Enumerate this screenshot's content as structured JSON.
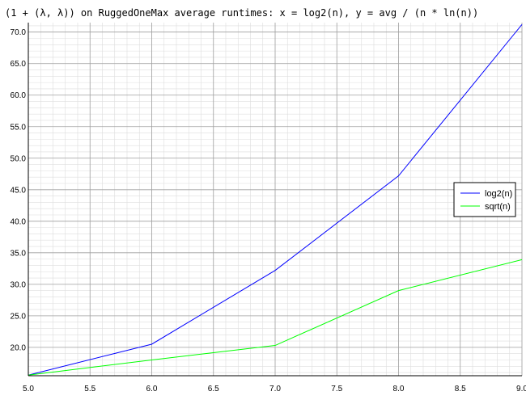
{
  "chart_data": {
    "type": "line",
    "title": "(1 + (λ, λ)) on RuggedOneMax average runtimes: x = log2(n), y = avg / (n * ln(n))",
    "xlabel": "",
    "ylabel": "",
    "xlim": [
      5.0,
      9.0
    ],
    "ylim": [
      15.5,
      71.5
    ],
    "x_ticks": [
      "5.0",
      "5.5",
      "6.0",
      "6.5",
      "7.0",
      "7.5",
      "8.0",
      "8.5",
      "9.0"
    ],
    "y_ticks": [
      "20.0",
      "25.0",
      "30.0",
      "35.0",
      "40.0",
      "45.0",
      "50.0",
      "55.0",
      "60.0",
      "65.0",
      "70.0"
    ],
    "grid": true,
    "legend_position": "right",
    "series": [
      {
        "name": "log2(n)",
        "color": "#0000ff",
        "x": [
          5,
          6,
          7,
          8,
          9
        ],
        "y": [
          15.6,
          20.5,
          32.2,
          47.2,
          71.2
        ]
      },
      {
        "name": "sqrt(n)",
        "color": "#00ff00",
        "x": [
          5,
          6,
          7,
          8,
          9
        ],
        "y": [
          15.6,
          18.0,
          20.3,
          29.0,
          33.9
        ]
      }
    ]
  }
}
